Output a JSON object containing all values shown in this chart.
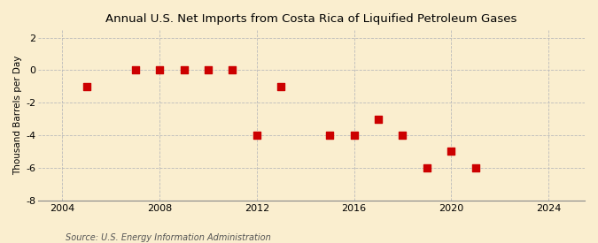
{
  "title": "Annual U.S. Net Imports from Costa Rica of Liquified Petroleum Gases",
  "ylabel": "Thousand Barrels per Day",
  "source": "Source: U.S. Energy Information Administration",
  "years": [
    2005,
    2007,
    2008,
    2009,
    2010,
    2011,
    2012,
    2013,
    2015,
    2016,
    2017,
    2018,
    2019,
    2020,
    2021
  ],
  "values": [
    -1,
    0,
    0,
    0,
    0,
    0,
    -4,
    -1,
    -4,
    -4,
    -3,
    -4,
    -6,
    -5,
    -6
  ],
  "xlim": [
    2003.0,
    2025.5
  ],
  "ylim": [
    -8,
    2.5
  ],
  "yticks": [
    -8,
    -6,
    -4,
    -2,
    0,
    2
  ],
  "xticks": [
    2004,
    2008,
    2012,
    2016,
    2020,
    2024
  ],
  "marker_color": "#cc0000",
  "marker_size": 28,
  "bg_color": "#faeecf",
  "grid_color": "#bbbbbb",
  "title_fontsize": 9.5,
  "label_fontsize": 7.5,
  "tick_fontsize": 8,
  "source_fontsize": 7
}
